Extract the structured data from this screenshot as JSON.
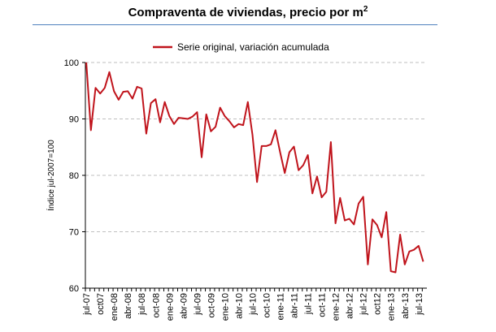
{
  "title": {
    "main": "Compraventa de viviendas, precio por m",
    "sup": "2"
  },
  "colors": {
    "series": "#c0141c",
    "rule": "#4f81bd",
    "grid": "#bfbfbf"
  },
  "chart_data": {
    "type": "line",
    "title": "Compraventa de viviendas, precio por m2",
    "ylabel": "Índice jul-2007=100",
    "xlabel": "",
    "ylim": [
      60,
      100
    ],
    "yticks": [
      60,
      70,
      80,
      90,
      100
    ],
    "grid": true,
    "legend": "top-center",
    "x": [
      "jul-07",
      "ago-07",
      "sep-07",
      "oct-07",
      "nov-07",
      "dic-07",
      "ene-08",
      "feb-08",
      "mar-08",
      "abr-08",
      "may-08",
      "jun-08",
      "jul-08",
      "ago-08",
      "sep-08",
      "oct-08",
      "nov-08",
      "dic-08",
      "ene-09",
      "feb-09",
      "mar-09",
      "abr-09",
      "may-09",
      "jun-09",
      "jul-09",
      "ago-09",
      "sep-09",
      "oct-09",
      "nov-09",
      "dic-09",
      "ene-10",
      "feb-10",
      "mar-10",
      "abr-10",
      "may-10",
      "jun-10",
      "jul-10",
      "ago-10",
      "sep-10",
      "oct-10",
      "nov-10",
      "dic-10",
      "ene-11",
      "feb-11",
      "mar-11",
      "abr-11",
      "may-11",
      "jun-11",
      "jul-11",
      "ago-11",
      "sep-11",
      "oct-11",
      "nov-11",
      "dic-11",
      "ene-12",
      "feb-12",
      "mar-12",
      "abr-12",
      "may-12",
      "jun-12",
      "jul-12",
      "ago-12",
      "sep-12",
      "oct-12",
      "nov-12",
      "dic-12",
      "ene-13",
      "feb-13",
      "mar-13",
      "abr-13",
      "may-13",
      "jun-13",
      "jul-13",
      "ago-13"
    ],
    "xtick_labels": [
      "jul-07",
      "oct07",
      "ene-08",
      "abr-08",
      "jul-08",
      "oct-08",
      "ene-09",
      "abr-09",
      "jul-09",
      "oct-09",
      "ene-10",
      "abr-10",
      "jul-10",
      "oct-10",
      "ene-11",
      "abr-11",
      "jul-11",
      "oct-11",
      "ene-12",
      "abr-12",
      "jul-12",
      "oct12",
      "ene-13",
      "abr-13",
      "jul-13"
    ],
    "series": [
      {
        "name": "Serie original, variación acumulada",
        "values": [
          100,
          88,
          95.5,
          94.5,
          95.5,
          98.3,
          94.9,
          93.4,
          94.8,
          94.9,
          93.6,
          95.7,
          95.4,
          87.4,
          92.8,
          93.5,
          89.4,
          93,
          90.5,
          89.1,
          90.2,
          90.1,
          90.0,
          90.4,
          91.2,
          83.2,
          90.8,
          87.8,
          88.6,
          92,
          90.5,
          89.6,
          88.5,
          89.1,
          88.9,
          93,
          87.2,
          78.8,
          85.2,
          85.2,
          85.5,
          88,
          84.1,
          80.4,
          84.1,
          85.1,
          80.9,
          81.8,
          83.6,
          76.8,
          79.8,
          76.1,
          77.1,
          85.9,
          71.5,
          76,
          72,
          72.3,
          71.3,
          75,
          76.2,
          64.2,
          72.2,
          71.2,
          69,
          73.5,
          63,
          62.8,
          69.5,
          64.2,
          66.5,
          66.8,
          67.5,
          64.7
        ]
      }
    ]
  }
}
